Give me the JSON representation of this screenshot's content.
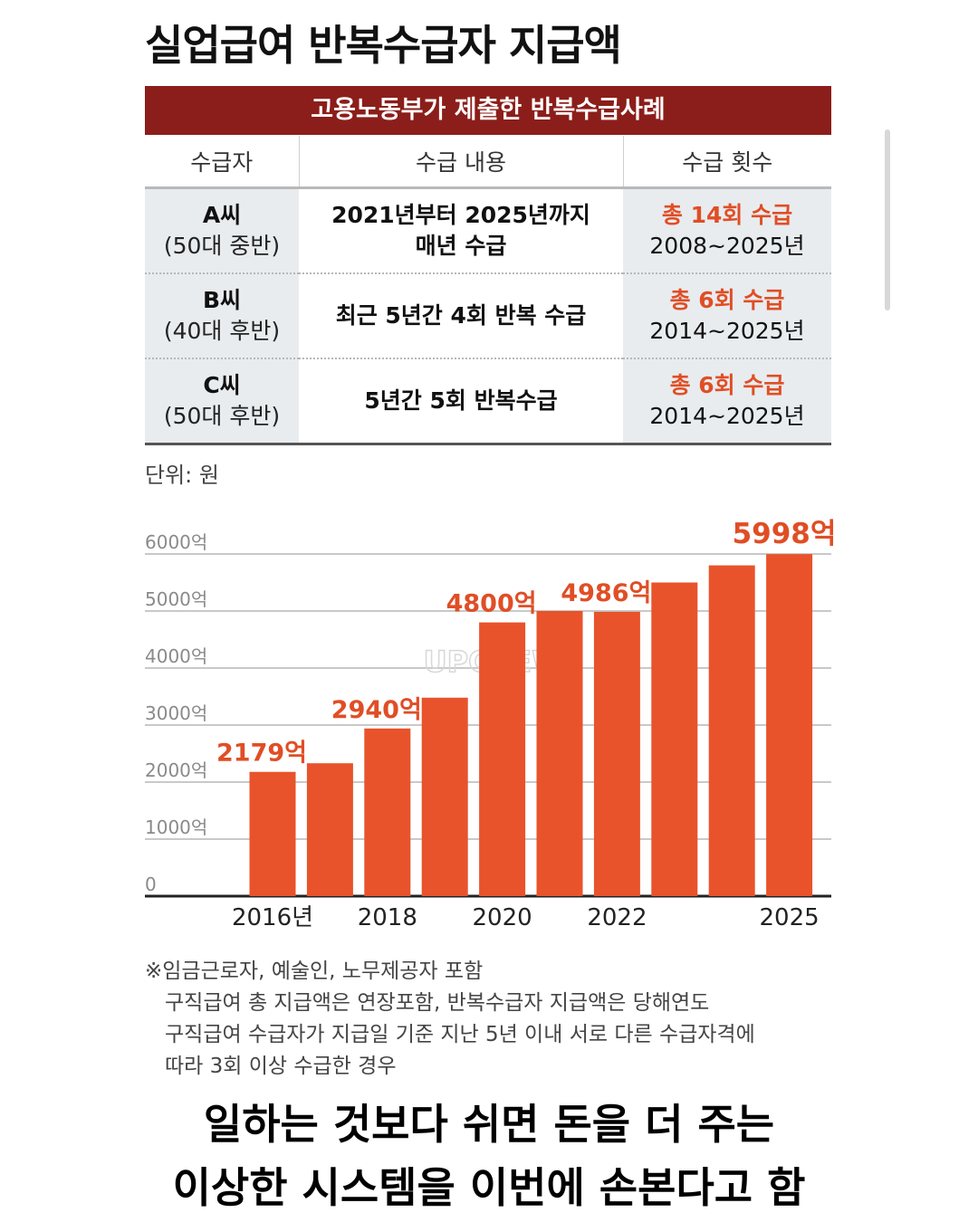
{
  "title": "실업급여 반복수급자 지급액",
  "table": {
    "banner": "고용노동부가 제출한 반복수급사례",
    "headers": [
      "수급자",
      "수급 내용",
      "수급 횟수"
    ],
    "rows": [
      {
        "who": "A씨",
        "age": "(50대 중반)",
        "content": [
          "2021년부터 2025년까지",
          "매년 수급"
        ],
        "total": "총 14회 수급",
        "period": "2008~2025년"
      },
      {
        "who": "B씨",
        "age": "(40대 후반)",
        "content": [
          "최근 5년간 4회 반복 수급"
        ],
        "total": "총 6회 수급",
        "period": "2014~2025년"
      },
      {
        "who": "C씨",
        "age": "(50대 후반)",
        "content": [
          "5년간 5회 반복수급"
        ],
        "total": "총 6회 수급",
        "period": "2014~2025년"
      }
    ]
  },
  "unit_label": "단위: 원",
  "chart_data": {
    "type": "bar",
    "title": "",
    "xlabel": "",
    "ylabel": "",
    "categories": [
      "2016",
      "2017",
      "2018",
      "2019",
      "2020",
      "2021",
      "2022",
      "2023",
      "2024",
      "2025"
    ],
    "values": [
      2179,
      2330,
      2940,
      3480,
      4800,
      5000,
      4986,
      5500,
      5800,
      5998
    ],
    "data_labels": [
      "2179억",
      "",
      "2940억",
      "",
      "4800억",
      "",
      "4986억",
      "",
      "",
      "5998억"
    ],
    "x_tick_labels": [
      "2016년",
      "",
      "2018",
      "",
      "2020",
      "",
      "2022",
      "",
      "",
      "2025"
    ],
    "y_ticks": [
      0,
      1000,
      2000,
      3000,
      4000,
      5000,
      6000
    ],
    "y_tick_labels": [
      "0",
      "1000억",
      "2000억",
      "3000억",
      "4000억",
      "5000억",
      "6000억"
    ],
    "ylim": [
      0,
      6000
    ],
    "grid": true,
    "bar_color": "#e8532b",
    "label_color": "#e04e25"
  },
  "watermark": "UPCREW",
  "notes": [
    "※임금근로자, 예술인, 노무제공자 포함",
    "구직급여 총 지급액은 연장포함, 반복수급자 지급액은 당해연도",
    "구직급여 수급자가 지급일 기준 지난 5년 이내 서로 다른 수급자격에",
    "따라 3회 이상 수급한 경우"
  ],
  "caption": [
    "일하는 것보다 쉬면 돈을 더 주는",
    "이상한 시스템을 이번에 손본다고 함"
  ]
}
